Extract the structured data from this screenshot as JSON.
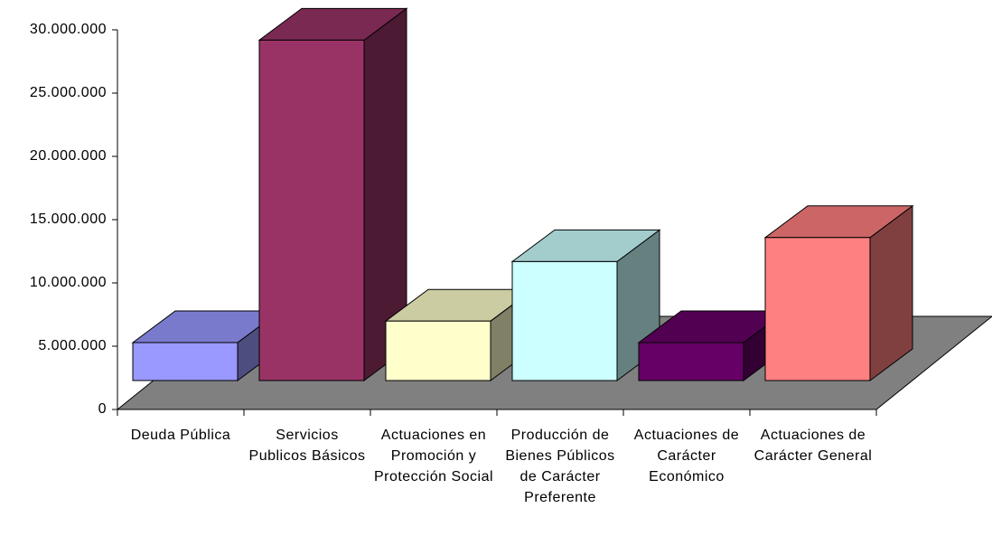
{
  "chart_data": {
    "type": "bar3d",
    "categories": [
      "Deuda Pública",
      "Servicios Publicos Básicos",
      "Actuaciones en Promoción y Protección Social",
      "Producción de Bienes Públicos de Carácter Preferente",
      "Actuaciones de Carácter Económico",
      "Actuaciones de Carácter General"
    ],
    "values": [
      3000000,
      26900000,
      4700000,
      9400000,
      3000000,
      11300000
    ],
    "colors": [
      "#9999ff",
      "#993366",
      "#ffffcc",
      "#ccffff",
      "#660066",
      "#ff8080"
    ],
    "ylim": [
      0,
      30000000
    ],
    "yticks": [
      0,
      {
        "value": 5000000,
        "label": "5.000.000"
      },
      {
        "value": 10000000,
        "label": "10.000.000"
      },
      {
        "value": 15000000,
        "label": "15.000.000"
      },
      {
        "value": 20000000,
        "label": "20.000.000"
      },
      {
        "value": 25000000,
        "label": "25.000.000"
      },
      {
        "value": 30000000,
        "label": "30.000.000"
      }
    ]
  }
}
